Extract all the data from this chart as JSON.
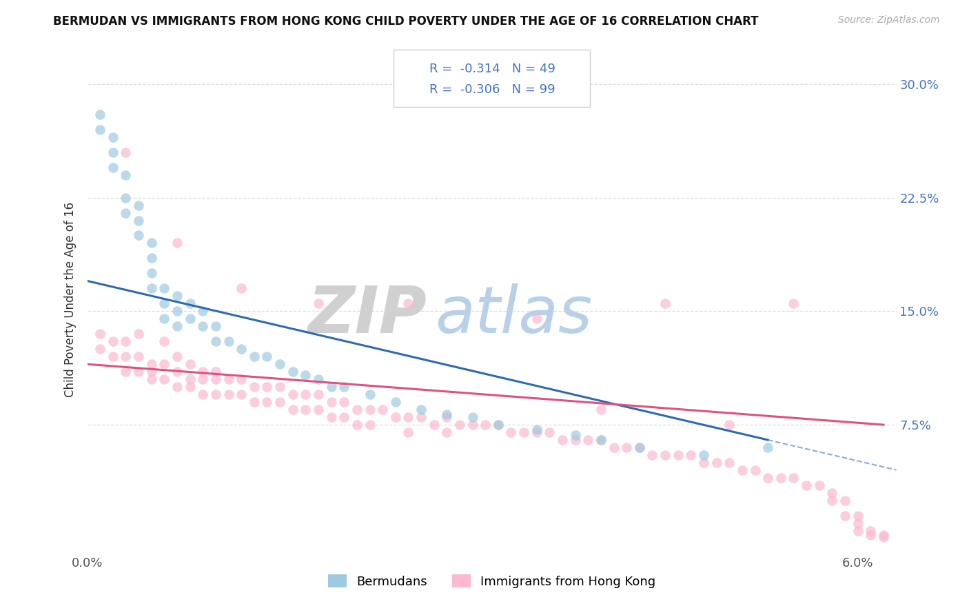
{
  "title": "BERMUDAN VS IMMIGRANTS FROM HONG KONG CHILD POVERTY UNDER THE AGE OF 16 CORRELATION CHART",
  "source": "Source: ZipAtlas.com",
  "ylabel": "Child Poverty Under the Age of 16",
  "y_ticks_labels": [
    "7.5%",
    "15.0%",
    "22.5%",
    "30.0%"
  ],
  "y_tick_vals": [
    0.075,
    0.15,
    0.225,
    0.3
  ],
  "xlim": [
    0.0,
    0.063
  ],
  "ylim": [
    -0.01,
    0.325
  ],
  "legend1_label": "R =  -0.314   N = 49",
  "legend2_label": "R =  -0.306   N = 99",
  "legend_bottom1": "Bermudans",
  "legend_bottom2": "Immigrants from Hong Kong",
  "blue_scatter_color": "#9ecae1",
  "pink_scatter_color": "#fcb8ce",
  "blue_line_color": "#2b6cb0",
  "pink_line_color": "#e05080",
  "title_color": "#111111",
  "source_color": "#aaaaaa",
  "tick_color_right": "#4472c4",
  "grid_color": "#dddddd",
  "zip_grey": "#cccccc",
  "atlas_blue": "#b8d0e8"
}
